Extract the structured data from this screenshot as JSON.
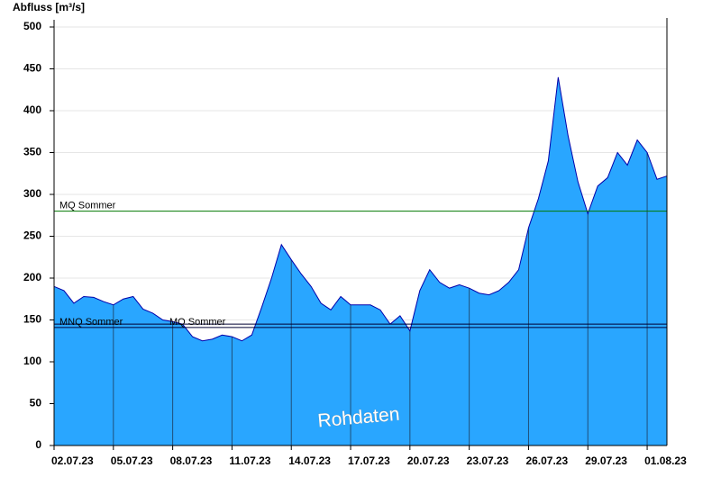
{
  "chart_data": {
    "type": "area",
    "y_label": "Abfluss [m³/s]",
    "watermark": "Rohdaten",
    "color": "#29a6ff",
    "line_color": "#0000aa",
    "x": [
      0,
      0.5,
      1,
      1.5,
      2,
      2.5,
      3,
      3.5,
      4,
      4.5,
      5,
      5.5,
      6,
      6.5,
      7,
      7.5,
      8,
      8.5,
      9,
      9.5,
      10,
      10.5,
      11,
      11.5,
      12,
      12.5,
      13,
      13.5,
      14,
      14.5,
      15,
      15.5,
      16,
      16.5,
      17,
      17.5,
      18,
      18.5,
      19,
      19.5,
      20,
      20.5,
      21,
      21.5,
      22,
      22.5,
      23,
      23.5,
      24,
      24.5,
      25,
      25.5,
      26,
      26.5,
      27,
      27.5,
      28,
      28.5,
      29,
      29.5,
      30,
      30.5,
      31
    ],
    "values": [
      190,
      185,
      170,
      178,
      177,
      172,
      168,
      175,
      178,
      163,
      158,
      150,
      148,
      145,
      130,
      125,
      127,
      132,
      130,
      125,
      132,
      165,
      200,
      240,
      222,
      205,
      190,
      170,
      162,
      178,
      168,
      168,
      168,
      162,
      145,
      155,
      137,
      185,
      210,
      195,
      188,
      192,
      188,
      182,
      180,
      185,
      195,
      210,
      260,
      295,
      340,
      440,
      370,
      315,
      277,
      310,
      320,
      350,
      335,
      365,
      350,
      318,
      322
    ],
    "xlim": [
      0,
      31
    ],
    "xticks": [
      {
        "value": 0,
        "label": "02.07.23"
      },
      {
        "value": 3,
        "label": "05.07.23"
      },
      {
        "value": 6,
        "label": "08.07.23"
      },
      {
        "value": 9,
        "label": "11.07.23"
      },
      {
        "value": 12,
        "label": "14.07.23"
      },
      {
        "value": 15,
        "label": "17.07.23"
      },
      {
        "value": 18,
        "label": "20.07.23"
      },
      {
        "value": 21,
        "label": "23.07.23"
      },
      {
        "value": 24,
        "label": "26.07.23"
      },
      {
        "value": 27,
        "label": "29.07.23"
      },
      {
        "value": 30,
        "label": "01.08.23"
      }
    ],
    "ylim": [
      0,
      500
    ],
    "yticks": [
      0,
      50,
      100,
      150,
      200,
      250,
      300,
      350,
      400,
      450,
      500
    ],
    "grid": true,
    "reference_lines": [
      {
        "label": "MQ Sommer",
        "value": 280,
        "color": "#007700"
      },
      {
        "label": "MNQ Sommer",
        "value": 141,
        "color": "#000033"
      },
      {
        "label": "MQ Sommer",
        "value": 145,
        "color": "#000033"
      }
    ]
  }
}
